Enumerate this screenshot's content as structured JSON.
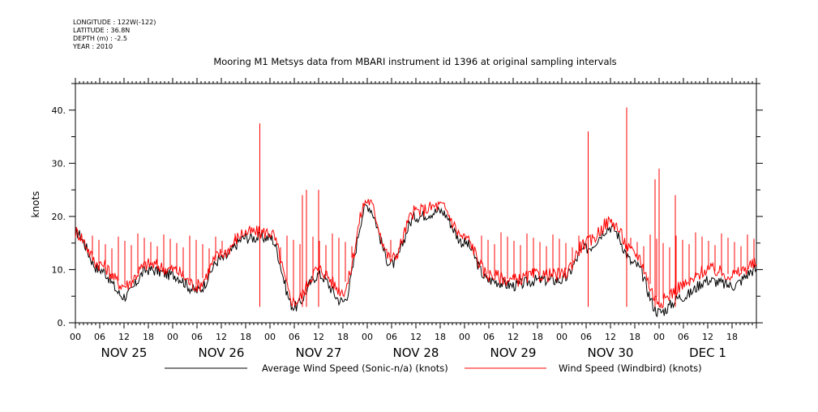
{
  "meta": {
    "longitude": "LONGITUDE : 122W(-122)",
    "latitude": "LATITUDE : 36.8N",
    "depth": "DEPTH (m) : -2.5",
    "year": "YEAR : 2010"
  },
  "chart_data": {
    "type": "line",
    "title": "Mooring M1 Metsys data from MBARI instrument id 1396 at original sampling intervals",
    "ylabel": "knots",
    "xlabel": "",
    "ylim": [
      0,
      45
    ],
    "y_ticks": [
      "0.",
      "10.",
      "20.",
      "30.",
      "40."
    ],
    "y_tick_values": [
      0,
      10,
      20,
      30,
      40
    ],
    "x_hour_labels": [
      "00",
      "06",
      "12",
      "18",
      "00",
      "06",
      "12",
      "18",
      "00",
      "06",
      "12",
      "18",
      "00",
      "06",
      "12",
      "18",
      "00",
      "06",
      "12",
      "18",
      "00",
      "06",
      "12",
      "18",
      "00",
      "06",
      "12",
      "18"
    ],
    "x_day_labels": [
      "NOV 25",
      "NOV 26",
      "NOV 27",
      "NOV 28",
      "NOV 29",
      "NOV 30",
      "DEC  1"
    ],
    "x_range_hours": [
      0,
      168
    ],
    "legend_position": "bottom",
    "grid": false,
    "series": [
      {
        "name": "Average Wind Speed (Sonic-n/a) (knots)",
        "color": "#000000",
        "x_hours": [
          0,
          6,
          12,
          18,
          24,
          30,
          36,
          42,
          48,
          54,
          60,
          66,
          72,
          78,
          84,
          90,
          96,
          102,
          108,
          114,
          120,
          126,
          132,
          138,
          144,
          150,
          156,
          162,
          168
        ],
        "values": [
          17,
          10,
          5,
          10,
          9,
          6,
          12,
          16,
          16,
          3,
          9,
          4,
          22,
          11,
          20,
          21,
          15,
          8,
          7,
          8,
          8,
          14,
          18,
          11,
          2,
          5,
          8,
          7,
          10
        ]
      },
      {
        "name": "Wind Speed (Windbird) (knots)",
        "color": "#ff0000",
        "x_hours": [
          0,
          6,
          12,
          18,
          24,
          30,
          36,
          42,
          48,
          54,
          60,
          66,
          72,
          78,
          84,
          90,
          96,
          102,
          108,
          114,
          120,
          126,
          132,
          138,
          144,
          150,
          156,
          162,
          168
        ],
        "values": [
          17,
          11,
          7,
          11,
          10,
          7,
          13,
          17,
          17,
          4,
          10,
          6,
          23,
          12,
          21,
          22,
          16,
          9,
          8,
          9,
          9,
          15,
          19,
          13,
          4,
          7,
          10,
          9,
          11
        ],
        "spike_hours": [
          45.5,
          56,
          57,
          60,
          126.5,
          136,
          143,
          144,
          148
        ],
        "spike_values": [
          37.5,
          24,
          25,
          25,
          36,
          40.5,
          27,
          29,
          24
        ]
      }
    ]
  }
}
